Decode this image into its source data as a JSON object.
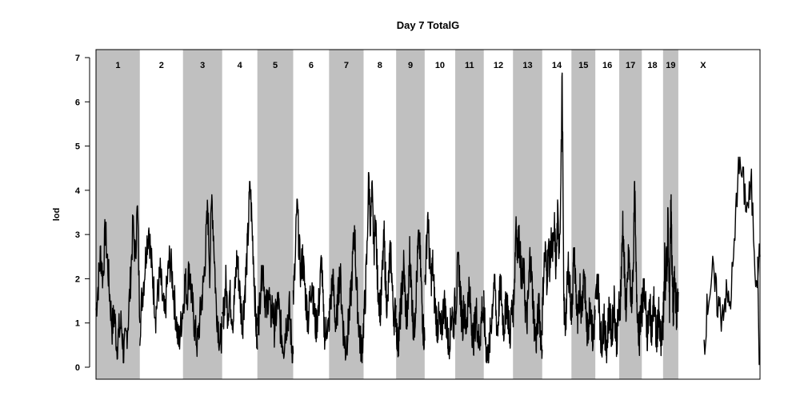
{
  "chart_data": {
    "type": "line",
    "title": "Day 7 TotalG",
    "xlabel": "",
    "ylabel": "lod",
    "ylim": [
      0,
      7
    ],
    "yticks": [
      0,
      1,
      2,
      3,
      4,
      5,
      6,
      7
    ],
    "grid": false,
    "legend": "none",
    "colors": {
      "line": "#000000",
      "band": "#c0c0c0",
      "axis": "#000000"
    },
    "chromosomes": [
      {
        "name": "1",
        "start": 0.0,
        "end": 0.066,
        "shaded": true,
        "peak": 3.65,
        "profile": [
          1.3,
          1.9,
          2.6,
          2.0,
          3.1,
          2.4,
          1.6,
          0.9,
          1.2,
          0.5,
          0.8,
          1.0,
          0.3,
          0.6,
          1.1,
          2.0,
          3.2,
          2.5,
          3.65,
          1.0
        ]
      },
      {
        "name": "2",
        "start": 0.066,
        "end": 0.131,
        "shaded": false,
        "peak": 3.15,
        "profile": [
          0.9,
          1.6,
          2.1,
          2.8,
          3.15,
          2.4,
          1.8,
          1.2,
          1.7,
          2.1,
          1.5,
          1.1,
          1.9,
          2.4,
          2.2,
          1.6,
          1.1,
          0.5,
          0.9,
          1.4
        ]
      },
      {
        "name": "3",
        "start": 0.131,
        "end": 0.19,
        "shaded": true,
        "peak": 3.9,
        "profile": [
          1.3,
          2.0,
          1.6,
          2.3,
          1.7,
          1.2,
          0.8,
          0.5,
          1.0,
          1.5,
          1.9,
          2.7,
          3.6,
          2.2,
          3.9,
          2.8,
          1.5,
          1.0,
          0.5,
          0.9
        ]
      },
      {
        "name": "4",
        "start": 0.19,
        "end": 0.243,
        "shaded": false,
        "peak": 4.2,
        "profile": [
          0.8,
          1.4,
          1.9,
          1.2,
          1.7,
          1.3,
          1.1,
          1.8,
          2.5,
          2.0,
          1.4,
          1.0,
          1.6,
          2.2,
          3.0,
          4.2,
          3.3,
          2.4,
          1.2,
          0.4
        ]
      },
      {
        "name": "5",
        "start": 0.243,
        "end": 0.297,
        "shaded": true,
        "peak": 2.3,
        "profile": [
          1.0,
          1.2,
          2.1,
          2.3,
          1.6,
          1.3,
          1.8,
          1.1,
          1.4,
          0.9,
          1.2,
          1.5,
          1.0,
          0.7,
          0.5,
          0.9,
          1.1,
          1.3,
          0.6,
          0.3
        ]
      },
      {
        "name": "6",
        "start": 0.297,
        "end": 0.351,
        "shaded": false,
        "peak": 3.8,
        "profile": [
          1.6,
          2.2,
          3.8,
          2.8,
          2.1,
          2.5,
          1.9,
          1.4,
          1.1,
          1.6,
          2.0,
          1.3,
          0.9,
          1.2,
          1.6,
          2.5,
          1.1,
          0.7,
          1.0,
          0.8
        ]
      },
      {
        "name": "7",
        "start": 0.351,
        "end": 0.403,
        "shaded": true,
        "peak": 3.2,
        "profile": [
          1.1,
          1.5,
          2.1,
          1.3,
          0.9,
          1.6,
          2.2,
          1.4,
          0.8,
          0.4,
          0.7,
          1.1,
          1.6,
          2.4,
          3.2,
          1.9,
          1.2,
          0.6,
          0.4,
          0.9
        ]
      },
      {
        "name": "8",
        "start": 0.403,
        "end": 0.452,
        "shaded": false,
        "peak": 4.4,
        "profile": [
          1.0,
          1.6,
          2.6,
          4.4,
          3.2,
          3.9,
          2.6,
          3.5,
          2.0,
          1.6,
          1.3,
          2.2,
          2.9,
          1.8,
          1.3,
          2.3,
          2.6,
          1.5,
          1.1,
          1.4
        ]
      },
      {
        "name": "9",
        "start": 0.452,
        "end": 0.495,
        "shaded": true,
        "peak": 3.1,
        "profile": [
          1.1,
          0.5,
          0.8,
          1.3,
          1.8,
          2.3,
          1.6,
          1.0,
          1.4,
          2.6,
          1.9,
          1.2,
          0.8,
          1.5,
          2.2,
          3.1,
          2.5,
          1.6,
          0.9,
          0.6
        ]
      },
      {
        "name": "10",
        "start": 0.495,
        "end": 0.541,
        "shaded": false,
        "peak": 3.5,
        "profile": [
          1.8,
          2.6,
          3.5,
          2.4,
          2.0,
          2.3,
          1.6,
          1.2,
          0.9,
          1.1,
          0.7,
          1.0,
          1.5,
          1.2,
          0.8,
          0.5,
          0.9,
          1.3,
          0.9,
          1.6
        ]
      },
      {
        "name": "11",
        "start": 0.541,
        "end": 0.584,
        "shaded": true,
        "peak": 2.6,
        "profile": [
          1.2,
          1.7,
          2.6,
          1.9,
          1.3,
          1.0,
          1.5,
          0.8,
          1.2,
          1.8,
          1.4,
          1.0,
          0.6,
          0.9,
          1.3,
          0.8,
          0.5,
          0.9,
          1.4,
          1.0
        ]
      },
      {
        "name": "12",
        "start": 0.584,
        "end": 0.628,
        "shaded": false,
        "peak": 2.1,
        "profile": [
          1.3,
          0.7,
          0.3,
          0.2,
          0.6,
          1.1,
          1.6,
          2.1,
          1.2,
          0.8,
          1.5,
          1.9,
          1.3,
          0.9,
          1.2,
          1.6,
          1.1,
          0.7,
          1.2,
          1.5
        ]
      },
      {
        "name": "13",
        "start": 0.628,
        "end": 0.672,
        "shaded": true,
        "peak": 3.4,
        "profile": [
          1.2,
          2.0,
          3.4,
          2.6,
          3.0,
          2.3,
          1.9,
          2.2,
          1.4,
          1.0,
          1.6,
          2.5,
          2.1,
          1.5,
          0.9,
          0.6,
          1.0,
          1.4,
          0.8,
          0.4
        ]
      },
      {
        "name": "14",
        "start": 0.672,
        "end": 0.716,
        "shaded": false,
        "peak": 6.65,
        "profile": [
          1.1,
          2.2,
          2.6,
          2.0,
          2.7,
          2.3,
          2.9,
          2.5,
          3.1,
          2.2,
          3.4,
          2.7,
          3.8,
          6.65,
          1.5,
          0.9,
          1.6,
          2.3,
          1.8,
          1.1
        ]
      },
      {
        "name": "15",
        "start": 0.716,
        "end": 0.752,
        "shaded": true,
        "peak": 2.7,
        "profile": [
          1.2,
          1.8,
          2.7,
          2.1,
          1.5,
          0.9,
          1.4,
          1.9,
          1.2,
          1.7,
          2.3,
          1.6,
          1.0,
          0.7,
          1.2,
          1.5,
          1.1,
          0.6,
          0.9,
          1.3
        ]
      },
      {
        "name": "16",
        "start": 0.752,
        "end": 0.788,
        "shaded": false,
        "peak": 2.1,
        "profile": [
          1.3,
          1.7,
          2.1,
          1.4,
          0.9,
          0.5,
          0.8,
          1.2,
          0.6,
          0.4,
          0.9,
          1.3,
          1.0,
          0.7,
          1.1,
          1.5,
          0.9,
          0.6,
          1.0,
          1.4
        ]
      },
      {
        "name": "17",
        "start": 0.788,
        "end": 0.822,
        "shaded": true,
        "peak": 4.2,
        "profile": [
          1.1,
          1.6,
          2.3,
          3.3,
          2.4,
          1.7,
          1.2,
          1.9,
          2.6,
          2.0,
          1.4,
          1.8,
          2.5,
          4.2,
          2.3,
          1.5,
          1.0,
          0.7,
          1.2,
          1.5
        ]
      },
      {
        "name": "18",
        "start": 0.822,
        "end": 0.854,
        "shaded": false,
        "peak": 2.0,
        "profile": [
          1.2,
          1.6,
          2.0,
          1.5,
          1.1,
          0.7,
          1.0,
          1.4,
          1.1,
          0.8,
          1.2,
          1.5,
          1.0,
          0.6,
          0.9,
          1.2,
          0.8,
          0.5,
          0.7,
          1.0
        ]
      },
      {
        "name": "19",
        "start": 0.854,
        "end": 0.877,
        "shaded": true,
        "peak": 3.9,
        "profile": [
          1.0,
          1.5,
          2.4,
          1.6,
          2.8,
          1.9,
          3.5,
          2.2,
          1.4,
          2.9,
          3.9,
          2.4,
          1.6,
          1.2,
          2.0,
          1.8,
          1.5,
          1.2,
          1.5,
          1.7
        ]
      },
      {
        "name": "X",
        "start": 0.877,
        "end": 1.0,
        "shaded": false,
        "peak": 4.75,
        "profile": [
          null,
          null,
          null,
          null,
          null,
          null,
          0.55,
          1.6,
          2.1,
          1.5,
          1.2,
          1.6,
          1.4,
          2.6,
          4.75,
          4.2,
          3.6,
          4.05,
          2.1,
          2.5
        ]
      }
    ]
  }
}
